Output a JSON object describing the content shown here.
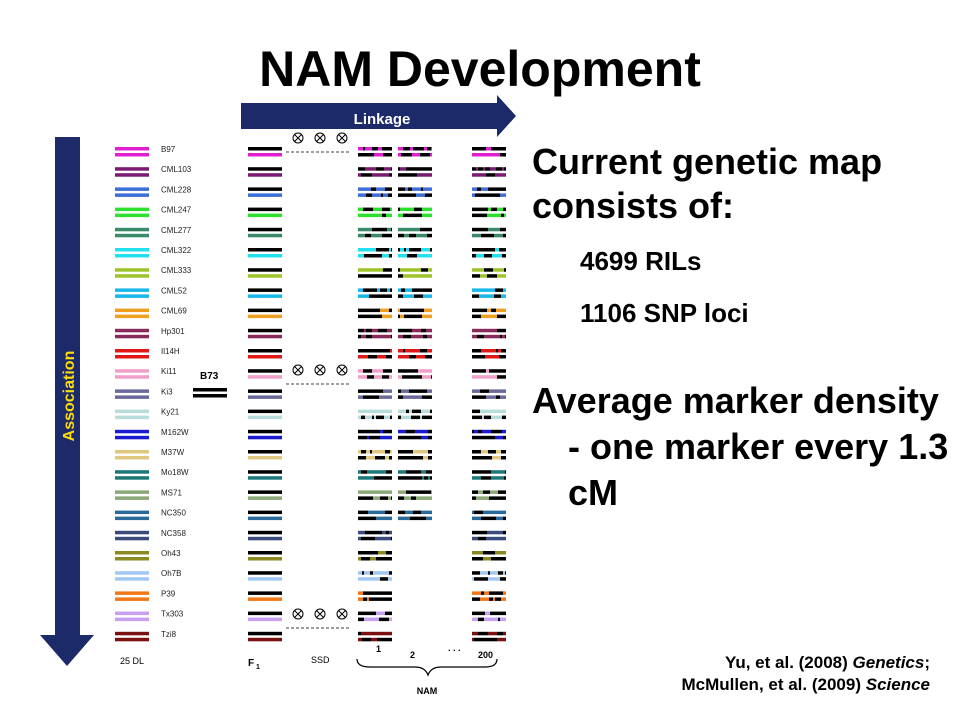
{
  "slide": {
    "title": "NAM Development",
    "bullets": {
      "b1": "Current genetic map consists of:",
      "sub1": "4699 RILs",
      "sub2": "1106 SNP loci",
      "b2": "Average marker density - one marker every 1.3 cM"
    },
    "citation": {
      "line1_prefix": "Yu, et al. (2008) ",
      "line1_journal": "Genetics",
      "line1_suffix": ";",
      "line2_prefix": "McMullen, et al. (2009) ",
      "line2_journal": "Science"
    }
  },
  "diagram": {
    "linkage_label": "Linkage",
    "association_label": "Association",
    "founder_label": "B73",
    "bottom_labels": {
      "dl": "25 DL",
      "f1": "F",
      "f1_sub": "1",
      "ssd": "SSD",
      "nam": "NAM",
      "fam1": "1",
      "fam2": "2",
      "fam200": "200",
      "dots": ". . ."
    },
    "lines": [
      {
        "name": "B97",
        "color": "#e020d0"
      },
      {
        "name": "CML103",
        "color": "#7a1a70"
      },
      {
        "name": "CML228",
        "color": "#3c6fd8"
      },
      {
        "name": "CML247",
        "color": "#2ee02e"
      },
      {
        "name": "CML277",
        "color": "#3a8a6a"
      },
      {
        "name": "CML322",
        "color": "#22e0ee"
      },
      {
        "name": "CML333",
        "color": "#9ec42a"
      },
      {
        "name": "CML52",
        "color": "#1ab8e8"
      },
      {
        "name": "CML69",
        "color": "#f0a020"
      },
      {
        "name": "Hp301",
        "color": "#8a2a5a"
      },
      {
        "name": "Il14H",
        "color": "#e01818"
      },
      {
        "name": "Ki11",
        "color": "#f0a0c8"
      },
      {
        "name": "Ki3",
        "color": "#6a6a9a"
      },
      {
        "name": "Ky21",
        "color": "#b8dcdc"
      },
      {
        "name": "M162W",
        "color": "#1a1ad0"
      },
      {
        "name": "M37W",
        "color": "#e0c880"
      },
      {
        "name": "Mo18W",
        "color": "#1a7878"
      },
      {
        "name": "MS71",
        "color": "#8aa878"
      },
      {
        "name": "NC350",
        "color": "#2a6a9a"
      },
      {
        "name": "NC358",
        "color": "#3a4a7a"
      },
      {
        "name": "Oh43",
        "color": "#8a8a20"
      },
      {
        "name": "Oh7B",
        "color": "#a0c8f0"
      },
      {
        "name": "P39",
        "color": "#f07818"
      },
      {
        "name": "Tx303",
        "color": "#c8a0f0"
      },
      {
        "name": "Tzi8",
        "color": "#7a1010"
      }
    ]
  }
}
